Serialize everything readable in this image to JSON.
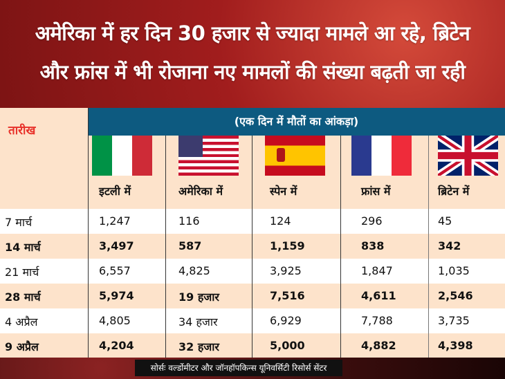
{
  "headline": {
    "line1": "अमेरिका में हर दिन 30 हजार से ज्यादा मामले आ रहे, ब्रिटेन",
    "line2": "और फ्रांस में भी रोजाना नए मामलों की संख्या बढ़ती जा रही"
  },
  "table": {
    "date_header": "तारीख",
    "subtitle": "(एक दिन में मौतों का आंकड़ा)",
    "columns": [
      "इटली में",
      "अमेरिका में",
      "स्पेन में",
      "फ्रांस में",
      "ब्रिटेन में"
    ],
    "rows": [
      {
        "date": "7 मार्च",
        "values": [
          "1,247",
          "116",
          "124",
          "296",
          "45"
        ]
      },
      {
        "date": "14 मार्च",
        "values": [
          "3,497",
          "587",
          "1,159",
          "838",
          "342"
        ]
      },
      {
        "date": "21 मार्च",
        "values": [
          "6,557",
          "4,825",
          "3,925",
          "1,847",
          "1,035"
        ]
      },
      {
        "date": "28 मार्च",
        "values": [
          "5,974",
          "19 हजार",
          "7,516",
          "4,611",
          "2,546"
        ]
      },
      {
        "date": "4 अप्रैल",
        "values": [
          "4,805",
          "34 हजार",
          "6,929",
          "7,788",
          "3,735"
        ]
      },
      {
        "date": "9 अप्रैल",
        "values": [
          "4,204",
          "32 हजार",
          "5,000",
          "4,882",
          "4,398"
        ]
      }
    ]
  },
  "source": "सोर्सः वर्ल्डोमीटर और जॉनहॉपकिन्स यूनिवर्सिटी रिसोर्स सेंटर"
}
